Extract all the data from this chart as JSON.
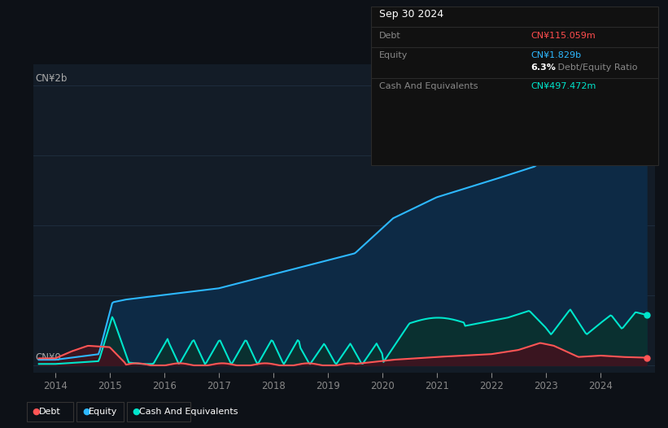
{
  "bg_color": "#0d1117",
  "plot_bg_color": "#131c27",
  "grid_color": "#1e2d3d",
  "title_box": {
    "date": "Sep 30 2024",
    "debt_label": "Debt",
    "debt_value": "CN¥115.059m",
    "debt_color": "#ff4d4d",
    "equity_label": "Equity",
    "equity_value": "CN¥1.829b",
    "equity_color": "#2db8ff",
    "ratio_value": "6.3%",
    "ratio_label": " Debt/Equity Ratio",
    "cash_label": "Cash And Equivalents",
    "cash_value": "CN¥497.472m",
    "cash_color": "#00e5cc"
  },
  "y_label_top": "CN¥2b",
  "y_label_bottom": "CN¥0",
  "x_ticks": [
    "2014",
    "2015",
    "2016",
    "2017",
    "2018",
    "2019",
    "2020",
    "2021",
    "2022",
    "2023",
    "2024"
  ],
  "equity_color": "#2db8ff",
  "equity_fill": "#0d2a45",
  "debt_color": "#ff5555",
  "debt_fill": "#3a1520",
  "cash_color": "#00e5cc",
  "cash_fill": "#0a3030",
  "legend": [
    {
      "label": "Debt",
      "color": "#ff5555"
    },
    {
      "label": "Equity",
      "color": "#2db8ff"
    },
    {
      "label": "Cash And Equivalents",
      "color": "#00e5cc"
    }
  ]
}
